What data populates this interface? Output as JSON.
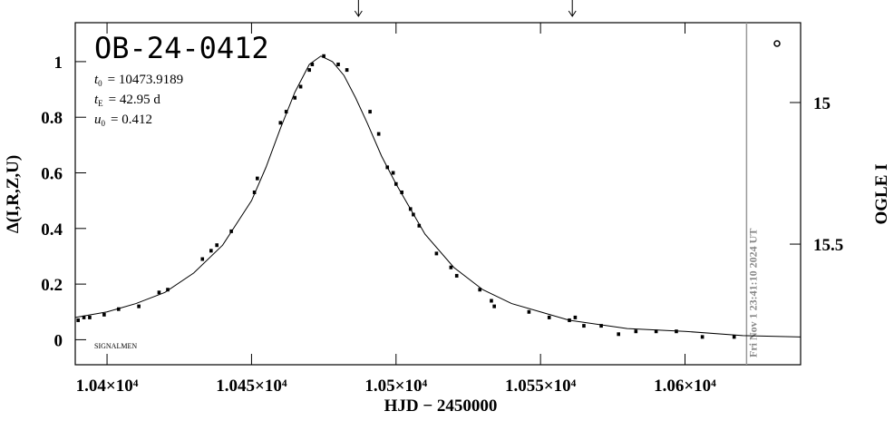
{
  "chart_data": {
    "type": "scatter",
    "title": "OB-24-0412",
    "params": [
      {
        "symbol": "t",
        "sub": "0",
        "text": "= 10473.9189"
      },
      {
        "symbol": "t",
        "sub": "E",
        "text": "= 42.95 d"
      },
      {
        "symbol": "u",
        "sub": "0",
        "text": "= 0.412"
      }
    ],
    "credit": "SIGNALMEN",
    "x_label": "HJD − 2450000",
    "y_label": "Δ(I,R,Z,U)",
    "y2_label": "OGLE I",
    "xlim": [
      10389,
      10640
    ],
    "ylim": [
      -0.09,
      1.14
    ],
    "y2lim": [
      14.718,
      15.926
    ],
    "xticks": [
      {
        "value": 10400,
        "label": "1.04×10⁴"
      },
      {
        "value": 10450,
        "label": "1.045×10⁴"
      },
      {
        "value": 10500,
        "label": "1.05×10⁴"
      },
      {
        "value": 10550,
        "label": "1.055×10⁴"
      },
      {
        "value": 10600,
        "label": "1.06×10⁴"
      }
    ],
    "yticks": [
      0,
      0.2,
      0.4,
      0.6,
      0.8,
      1
    ],
    "y2ticks": [
      15,
      15.5
    ],
    "color": "#000000",
    "series": [
      {
        "kind": "points",
        "x": [
          10390,
          10392,
          10394,
          10399,
          10404,
          10411,
          10418,
          10421,
          10433,
          10436,
          10438,
          10443,
          10451,
          10452,
          10460,
          10462,
          10465,
          10467,
          10470,
          10471,
          10475,
          10480,
          10483,
          10491,
          10494,
          10497,
          10499,
          10500,
          10502,
          10505,
          10506,
          10508,
          10514,
          10519,
          10521,
          10529,
          10533,
          10534,
          10546,
          10553,
          10560,
          10562,
          10565,
          10571,
          10577,
          10583,
          10590,
          10597,
          10606,
          10617
        ],
        "values": [
          0.07,
          0.08,
          0.08,
          0.09,
          0.11,
          0.12,
          0.17,
          0.18,
          0.29,
          0.32,
          0.34,
          0.39,
          0.53,
          0.58,
          0.78,
          0.82,
          0.87,
          0.91,
          0.97,
          0.99,
          1.02,
          0.99,
          0.97,
          0.82,
          0.74,
          0.62,
          0.6,
          0.56,
          0.53,
          0.47,
          0.45,
          0.41,
          0.31,
          0.26,
          0.23,
          0.18,
          0.14,
          0.12,
          0.1,
          0.08,
          0.07,
          0.08,
          0.05,
          0.05,
          0.02,
          0.03,
          0.03,
          0.03,
          0.01,
          0.01
        ]
      },
      {
        "kind": "model",
        "x": [
          10389,
          10400,
          10410,
          10420,
          10430,
          10440,
          10450,
          10455,
          10460,
          10465,
          10470,
          10474,
          10478,
          10482,
          10486,
          10490,
          10495,
          10500,
          10510,
          10520,
          10530,
          10540,
          10550,
          10560,
          10580,
          10600,
          10620,
          10640
        ],
        "values": [
          0.08,
          0.1,
          0.13,
          0.17,
          0.24,
          0.34,
          0.5,
          0.62,
          0.76,
          0.89,
          0.99,
          1.02,
          1.0,
          0.95,
          0.87,
          0.78,
          0.66,
          0.56,
          0.38,
          0.26,
          0.18,
          0.13,
          0.1,
          0.07,
          0.04,
          0.03,
          0.015,
          0.01
        ]
      }
    ],
    "arrows": [
      10487,
      10561
    ],
    "now": {
      "x": 10621.3,
      "label": "Fri Nov  1 23:41:10 2024 UT"
    }
  }
}
